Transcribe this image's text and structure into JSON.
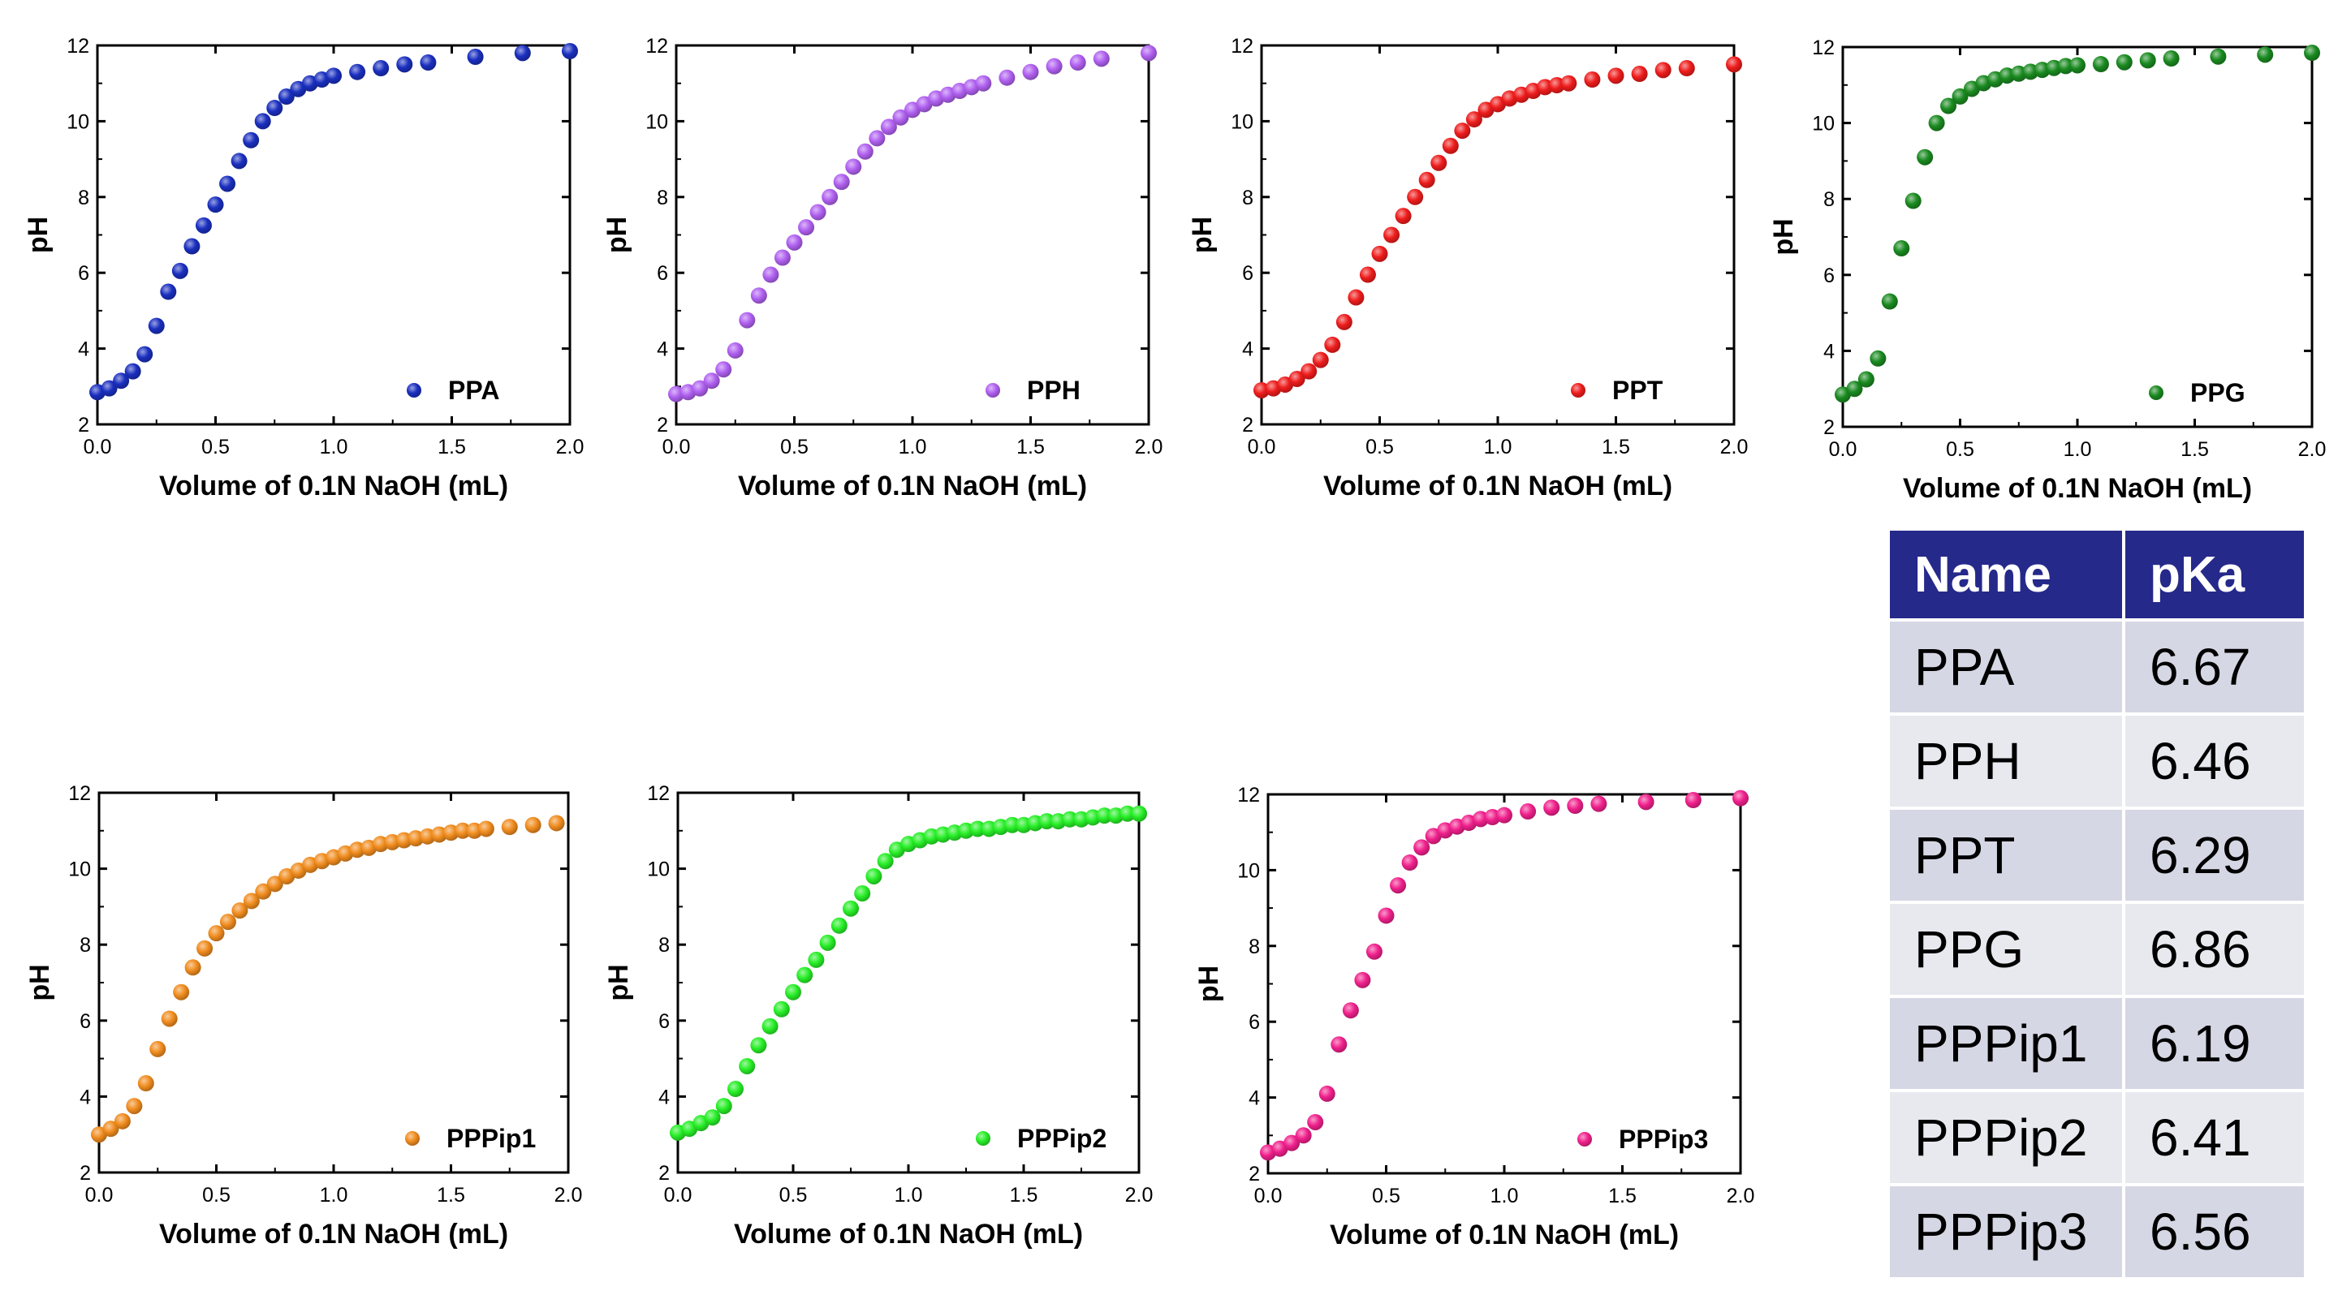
{
  "chart_data": [
    {
      "type": "scatter",
      "series_name": "PPA",
      "color": "#1a2fbf",
      "xlabel": "Volume of 0.1N NaOH (mL)",
      "ylabel": "pH",
      "xlim": [
        0,
        2.0
      ],
      "ylim": [
        2,
        12
      ],
      "xticks": [
        "0.0",
        "0.5",
        "1.0",
        "1.5",
        "2.0"
      ],
      "yticks": [
        "2",
        "4",
        "6",
        "8",
        "10",
        "12"
      ],
      "x": [
        0,
        0.05,
        0.1,
        0.15,
        0.2,
        0.25,
        0.3,
        0.35,
        0.4,
        0.45,
        0.5,
        0.55,
        0.6,
        0.65,
        0.7,
        0.75,
        0.8,
        0.85,
        0.9,
        0.95,
        1.0,
        1.1,
        1.2,
        1.3,
        1.4,
        1.6,
        1.8,
        2.0
      ],
      "y": [
        2.85,
        2.95,
        3.15,
        3.4,
        3.85,
        4.6,
        5.5,
        6.05,
        6.7,
        7.25,
        7.8,
        8.35,
        8.95,
        9.5,
        10.0,
        10.35,
        10.65,
        10.85,
        11.0,
        11.1,
        11.2,
        11.3,
        11.4,
        11.5,
        11.55,
        11.7,
        11.8,
        11.85
      ]
    },
    {
      "type": "scatter",
      "series_name": "PPH",
      "color": "#b060f0",
      "xlabel": "Volume of 0.1N NaOH (mL)",
      "ylabel": "pH",
      "xlim": [
        0,
        2.0
      ],
      "ylim": [
        2,
        12
      ],
      "xticks": [
        "0.0",
        "0.5",
        "1.0",
        "1.5",
        "2.0"
      ],
      "yticks": [
        "2",
        "4",
        "6",
        "8",
        "10",
        "12"
      ],
      "x": [
        0,
        0.05,
        0.1,
        0.15,
        0.2,
        0.25,
        0.3,
        0.35,
        0.4,
        0.45,
        0.5,
        0.55,
        0.6,
        0.65,
        0.7,
        0.75,
        0.8,
        0.85,
        0.9,
        0.95,
        1.0,
        1.05,
        1.1,
        1.15,
        1.2,
        1.25,
        1.3,
        1.4,
        1.5,
        1.6,
        1.7,
        1.8,
        2.0
      ],
      "y": [
        2.8,
        2.85,
        2.95,
        3.15,
        3.45,
        3.95,
        4.75,
        5.4,
        5.95,
        6.4,
        6.8,
        7.2,
        7.6,
        8.0,
        8.4,
        8.8,
        9.2,
        9.55,
        9.85,
        10.1,
        10.3,
        10.45,
        10.6,
        10.7,
        10.8,
        10.9,
        11.0,
        11.15,
        11.3,
        11.45,
        11.55,
        11.65,
        11.8
      ]
    },
    {
      "type": "scatter",
      "series_name": "PPT",
      "color": "#ee1c1c",
      "xlabel": "Volume of 0.1N NaOH (mL)",
      "ylabel": "pH",
      "xlim": [
        0,
        2.0
      ],
      "ylim": [
        2,
        12
      ],
      "xticks": [
        "0.0",
        "0.5",
        "1.0",
        "1.5",
        "2.0"
      ],
      "yticks": [
        "2",
        "4",
        "6",
        "8",
        "10",
        "12"
      ],
      "x": [
        0,
        0.05,
        0.1,
        0.15,
        0.2,
        0.25,
        0.3,
        0.35,
        0.4,
        0.45,
        0.5,
        0.55,
        0.6,
        0.65,
        0.7,
        0.75,
        0.8,
        0.85,
        0.9,
        0.95,
        1.0,
        1.05,
        1.1,
        1.15,
        1.2,
        1.25,
        1.3,
        1.4,
        1.5,
        1.6,
        1.7,
        1.8,
        2.0
      ],
      "y": [
        2.9,
        2.95,
        3.05,
        3.2,
        3.4,
        3.7,
        4.1,
        4.7,
        5.35,
        5.95,
        6.5,
        7.0,
        7.5,
        8.0,
        8.45,
        8.9,
        9.35,
        9.75,
        10.05,
        10.3,
        10.45,
        10.6,
        10.7,
        10.8,
        10.9,
        10.95,
        11.0,
        11.1,
        11.2,
        11.25,
        11.35,
        11.4,
        11.5
      ]
    },
    {
      "type": "scatter",
      "series_name": "PPG",
      "color": "#1a8a20",
      "xlabel": "Volume of 0.1N NaOH (mL)",
      "ylabel": "pH",
      "xlim": [
        0,
        2.0
      ],
      "ylim": [
        2,
        12
      ],
      "xticks": [
        "0.0",
        "0.5",
        "1.0",
        "1.5",
        "2.0"
      ],
      "yticks": [
        "2",
        "4",
        "6",
        "8",
        "10",
        "12"
      ],
      "x": [
        0,
        0.05,
        0.1,
        0.15,
        0.2,
        0.25,
        0.3,
        0.35,
        0.4,
        0.45,
        0.5,
        0.55,
        0.6,
        0.65,
        0.7,
        0.75,
        0.8,
        0.85,
        0.9,
        0.95,
        1.0,
        1.1,
        1.2,
        1.3,
        1.4,
        1.6,
        1.8,
        2.0
      ],
      "y": [
        2.85,
        3.0,
        3.25,
        3.8,
        5.3,
        6.7,
        7.95,
        9.1,
        10.0,
        10.45,
        10.7,
        10.9,
        11.05,
        11.15,
        11.25,
        11.3,
        11.35,
        11.4,
        11.45,
        11.5,
        11.52,
        11.55,
        11.6,
        11.65,
        11.7,
        11.75,
        11.8,
        11.85
      ]
    },
    {
      "type": "scatter",
      "series_name": "PPPip1",
      "color": "#f08c1e",
      "xlabel": "Volume of 0.1N NaOH (mL)",
      "ylabel": "pH",
      "xlim": [
        0,
        2.0
      ],
      "ylim": [
        2,
        12
      ],
      "xticks": [
        "0.0",
        "0.5",
        "1.0",
        "1.5",
        "2.0"
      ],
      "yticks": [
        "2",
        "4",
        "6",
        "8",
        "10",
        "12"
      ],
      "x": [
        0,
        0.05,
        0.1,
        0.15,
        0.2,
        0.25,
        0.3,
        0.35,
        0.4,
        0.45,
        0.5,
        0.55,
        0.6,
        0.65,
        0.7,
        0.75,
        0.8,
        0.85,
        0.9,
        0.95,
        1.0,
        1.05,
        1.1,
        1.15,
        1.2,
        1.25,
        1.3,
        1.35,
        1.4,
        1.45,
        1.5,
        1.55,
        1.6,
        1.65,
        1.75,
        1.85,
        1.95
      ],
      "y": [
        3.0,
        3.15,
        3.35,
        3.75,
        4.35,
        5.25,
        6.05,
        6.75,
        7.4,
        7.9,
        8.3,
        8.6,
        8.9,
        9.15,
        9.4,
        9.6,
        9.8,
        9.95,
        10.1,
        10.2,
        10.3,
        10.4,
        10.5,
        10.55,
        10.65,
        10.7,
        10.75,
        10.8,
        10.85,
        10.9,
        10.95,
        11.0,
        11.0,
        11.05,
        11.1,
        11.15,
        11.2
      ]
    },
    {
      "type": "scatter",
      "series_name": "PPPip2",
      "color": "#27ee27",
      "xlabel": "Volume of 0.1N NaOH (mL)",
      "ylabel": "pH",
      "xlim": [
        0,
        2.0
      ],
      "ylim": [
        2,
        12
      ],
      "xticks": [
        "0.0",
        "0.5",
        "1.0",
        "1.5",
        "2.0"
      ],
      "yticks": [
        "2",
        "4",
        "6",
        "8",
        "10",
        "12"
      ],
      "x": [
        0,
        0.05,
        0.1,
        0.15,
        0.2,
        0.25,
        0.3,
        0.35,
        0.4,
        0.45,
        0.5,
        0.55,
        0.6,
        0.65,
        0.7,
        0.75,
        0.8,
        0.85,
        0.9,
        0.95,
        1.0,
        1.05,
        1.1,
        1.15,
        1.2,
        1.25,
        1.3,
        1.35,
        1.4,
        1.45,
        1.5,
        1.55,
        1.6,
        1.65,
        1.7,
        1.75,
        1.8,
        1.85,
        1.9,
        1.95,
        2.0
      ],
      "y": [
        3.05,
        3.15,
        3.3,
        3.45,
        3.75,
        4.2,
        4.8,
        5.35,
        5.85,
        6.3,
        6.75,
        7.2,
        7.6,
        8.05,
        8.5,
        8.95,
        9.35,
        9.8,
        10.2,
        10.5,
        10.65,
        10.75,
        10.85,
        10.9,
        10.95,
        11.0,
        11.05,
        11.05,
        11.1,
        11.15,
        11.15,
        11.2,
        11.25,
        11.25,
        11.3,
        11.3,
        11.35,
        11.4,
        11.4,
        11.45,
        11.45
      ]
    },
    {
      "type": "scatter",
      "series_name": "PPPip3",
      "color": "#f0208c",
      "xlabel": "Volume of 0.1N NaOH (mL)",
      "ylabel": "pH",
      "xlim": [
        0,
        2.0
      ],
      "ylim": [
        2,
        12
      ],
      "xticks": [
        "0.0",
        "0.5",
        "1.0",
        "1.5",
        "2.0"
      ],
      "yticks": [
        "2",
        "4",
        "6",
        "8",
        "10",
        "12"
      ],
      "x": [
        0,
        0.05,
        0.1,
        0.15,
        0.2,
        0.25,
        0.3,
        0.35,
        0.4,
        0.45,
        0.5,
        0.55,
        0.6,
        0.65,
        0.7,
        0.75,
        0.8,
        0.85,
        0.9,
        0.95,
        1.0,
        1.1,
        1.2,
        1.3,
        1.4,
        1.6,
        1.8,
        2.0
      ],
      "y": [
        2.55,
        2.65,
        2.8,
        3.0,
        3.35,
        4.1,
        5.4,
        6.3,
        7.1,
        7.85,
        8.8,
        9.6,
        10.2,
        10.6,
        10.9,
        11.05,
        11.15,
        11.25,
        11.35,
        11.4,
        11.45,
        11.55,
        11.65,
        11.7,
        11.75,
        11.8,
        11.85,
        11.9
      ]
    }
  ],
  "table": {
    "header": [
      "Name",
      "pKa"
    ],
    "rows": [
      [
        "PPA",
        "6.67"
      ],
      [
        "PPH",
        "6.46"
      ],
      [
        "PPT",
        "6.29"
      ],
      [
        "PPG",
        "6.86"
      ],
      [
        "PPPip1",
        "6.19"
      ],
      [
        "PPPip2",
        "6.41"
      ],
      [
        "PPPip3",
        "6.56"
      ]
    ]
  }
}
